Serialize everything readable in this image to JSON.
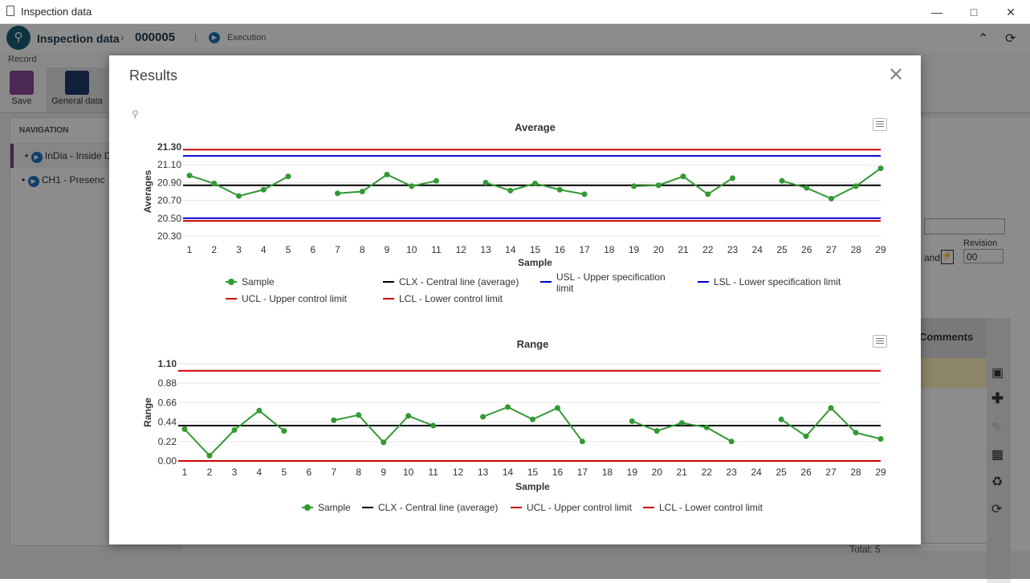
{
  "window": {
    "title": "Inspection data"
  },
  "header": {
    "app": "Inspection data",
    "record_id": "000005",
    "status": "Execution"
  },
  "ribbon": {
    "section": "Record",
    "save": "Save",
    "general": "General data"
  },
  "navigation": {
    "title": "NAVIGATION",
    "items": [
      "InDia - Inside D",
      "CH1 - Presenc"
    ]
  },
  "background": {
    "revision_label": "Revision",
    "revision_value": "00",
    "and_label": "and",
    "comments": "Comments",
    "total": "Total: 5"
  },
  "modal": {
    "title": "Results"
  },
  "chart_data": [
    {
      "type": "line",
      "title": "Average",
      "xlabel": "Sample",
      "ylabel": "Averages",
      "ylim": [
        20.3,
        21.3
      ],
      "yticks": [
        "20.30",
        "20.50",
        "20.70",
        "20.90",
        "21.10",
        "21.30"
      ],
      "x": [
        1,
        2,
        3,
        4,
        5,
        6,
        7,
        8,
        9,
        10,
        11,
        12,
        13,
        14,
        15,
        16,
        17,
        18,
        19,
        20,
        21,
        22,
        23,
        24,
        25,
        26,
        27,
        28,
        29
      ],
      "series": [
        {
          "name": "Sample",
          "color": "#339933",
          "values": [
            20.98,
            20.89,
            20.75,
            20.82,
            20.97,
            null,
            20.78,
            20.8,
            20.99,
            20.86,
            20.92,
            null,
            20.9,
            20.81,
            20.89,
            20.82,
            20.77,
            null,
            20.86,
            20.87,
            20.97,
            20.77,
            20.95,
            null,
            20.92,
            20.84,
            20.72,
            20.86,
            21.06
          ]
        }
      ],
      "reference_lines": [
        {
          "name": "CLX - Central line (average)",
          "value": 20.87,
          "color": "#000000"
        },
        {
          "name": "USL - Upper specification limit",
          "value": 21.2,
          "color": "#0000cc"
        },
        {
          "name": "LSL - Lower specification limit",
          "value": 20.5,
          "color": "#0000cc"
        },
        {
          "name": "UCL - Upper control limit",
          "value": 21.27,
          "color": "#cc0000"
        },
        {
          "name": "LCL - Lower control limit",
          "value": 20.47,
          "color": "#cc0000"
        }
      ],
      "legend": [
        "Sample",
        "CLX - Central line (average)",
        "USL - Upper specification limit",
        "LSL - Lower specification limit",
        "UCL - Upper control limit",
        "LCL - Lower control limit"
      ]
    },
    {
      "type": "line",
      "title": "Range",
      "xlabel": "Sample",
      "ylabel": "Range",
      "ylim": [
        0,
        1.1
      ],
      "yticks": [
        "0.00",
        "0.22",
        "0.44",
        "0.66",
        "0.88",
        "1.10"
      ],
      "x": [
        1,
        2,
        3,
        4,
        5,
        6,
        7,
        8,
        9,
        10,
        11,
        12,
        13,
        14,
        15,
        16,
        17,
        18,
        19,
        20,
        21,
        22,
        23,
        24,
        25,
        26,
        27,
        28,
        29
      ],
      "series": [
        {
          "name": "Sample",
          "color": "#339933",
          "values": [
            0.36,
            0.06,
            0.35,
            0.57,
            0.34,
            null,
            0.46,
            0.52,
            0.21,
            0.51,
            0.4,
            null,
            0.5,
            0.61,
            0.47,
            0.6,
            0.22,
            null,
            0.45,
            0.34,
            0.43,
            0.38,
            0.22,
            null,
            0.47,
            0.28,
            0.6,
            0.32,
            0.25
          ]
        }
      ],
      "reference_lines": [
        {
          "name": "CLX - Central line (average)",
          "value": 0.4,
          "color": "#000000"
        },
        {
          "name": "UCL - Upper control limit",
          "value": 1.02,
          "color": "#cc0000"
        },
        {
          "name": "LCL - Lower control limit",
          "value": 0.0,
          "color": "#cc0000"
        }
      ],
      "legend": [
        "Sample",
        "CLX - Central line (average)",
        "UCL - Upper control limit",
        "LCL - Lower control limit"
      ]
    }
  ]
}
